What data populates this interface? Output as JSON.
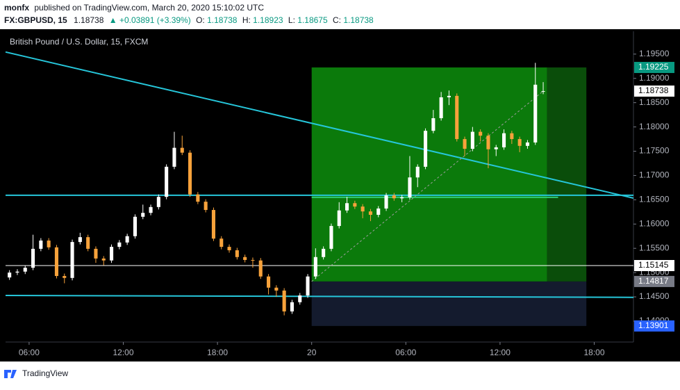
{
  "header": {
    "user": "monfx",
    "published": "published on TradingView.com, March 20, 2020 15:10:02 UTC",
    "symbol": "FX:GBPUSD, 15",
    "last": "1.18738",
    "change": "▲ +0.03891 (+3.39%)",
    "o_label": "O:",
    "o": "1.18738",
    "h_label": "H:",
    "h": "1.18923",
    "l_label": "L:",
    "l": "1.18675",
    "c_label": "C:",
    "c": "1.18738"
  },
  "footer": {
    "brand": "TradingView"
  },
  "chart_data": {
    "type": "candlestick",
    "title": "British Pound / U.S. Dollar, 15, FXCM",
    "up_color": "#ffffff",
    "down_color": "#f7a23b",
    "x": [
      4.75,
      5.25,
      5.75,
      6.25,
      6.75,
      7.25,
      7.75,
      8.25,
      8.75,
      9.25,
      9.75,
      10.25,
      10.75,
      11.25,
      11.75,
      12.25,
      12.75,
      13.25,
      13.75,
      14.25,
      14.75,
      15.25,
      15.75,
      16.25,
      16.75,
      17.25,
      17.75,
      18.25,
      18.75,
      19.25,
      19.75,
      20.25,
      20.75,
      21.25,
      21.75,
      22.25,
      22.75,
      23.25,
      23.75,
      24.25,
      24.75,
      25.25,
      25.75,
      26.25,
      26.75,
      27.25,
      27.75,
      28.25,
      28.75,
      29.25,
      29.75,
      30.25,
      30.75,
      31.25,
      31.75,
      32.25,
      32.75,
      33.25,
      33.75,
      34.25,
      34.75,
      35.25,
      35.75,
      36.25,
      36.75,
      37.25,
      37.75,
      38.25,
      38.75
    ],
    "open": [
      1.149,
      1.15,
      1.1502,
      1.151,
      1.1549,
      1.1566,
      1.1552,
      1.1493,
      1.1489,
      1.1563,
      1.1573,
      1.1549,
      1.1529,
      1.1525,
      1.1553,
      1.1562,
      1.1575,
      1.1615,
      1.1623,
      1.1635,
      1.1656,
      1.1718,
      1.1757,
      1.1747,
      1.1661,
      1.1646,
      1.1629,
      1.157,
      1.1553,
      1.1546,
      1.1532,
      1.1526,
      1.1525,
      1.1492,
      1.1469,
      1.1463,
      1.142,
      1.1439,
      1.1453,
      1.1492,
      1.1532,
      1.1549,
      1.1596,
      1.1628,
      1.1643,
      1.1636,
      1.1626,
      1.1619,
      1.1632,
      1.1659,
      1.1653,
      1.1655,
      1.1696,
      1.1718,
      1.1792,
      1.1818,
      1.1861,
      1.1864,
      1.1775,
      1.1755,
      1.179,
      1.1782,
      1.1754,
      1.1758,
      1.1787,
      1.1775,
      1.1761,
      1.1768,
      1.18738
    ],
    "high": [
      1.1505,
      1.1507,
      1.1515,
      1.1578,
      1.1571,
      1.1571,
      1.1557,
      1.1498,
      1.1568,
      1.1582,
      1.1578,
      1.1554,
      1.1534,
      1.1558,
      1.1567,
      1.158,
      1.162,
      1.164,
      1.164,
      1.1661,
      1.1723,
      1.179,
      1.1782,
      1.1752,
      1.1666,
      1.1651,
      1.1634,
      1.1575,
      1.1558,
      1.1551,
      1.1537,
      1.1531,
      1.153,
      1.1497,
      1.1474,
      1.1468,
      1.1444,
      1.1458,
      1.1497,
      1.155,
      1.1554,
      1.1601,
      1.1645,
      1.1656,
      1.1648,
      1.1641,
      1.1631,
      1.1637,
      1.1664,
      1.1664,
      1.166,
      1.174,
      1.1723,
      1.1797,
      1.1835,
      1.1872,
      1.1875,
      1.1869,
      1.178,
      1.18,
      1.1795,
      1.1787,
      1.1763,
      1.1795,
      1.1792,
      1.178,
      1.1773,
      1.1932,
      1.18923
    ],
    "low": [
      1.1485,
      1.1495,
      1.1497,
      1.1505,
      1.1544,
      1.1547,
      1.1488,
      1.1478,
      1.1484,
      1.1558,
      1.1544,
      1.152,
      1.1515,
      1.152,
      1.1548,
      1.1557,
      1.157,
      1.161,
      1.1618,
      1.163,
      1.1651,
      1.1713,
      1.1742,
      1.1656,
      1.1641,
      1.1624,
      1.1565,
      1.1548,
      1.1541,
      1.1527,
      1.1521,
      1.151,
      1.1487,
      1.1455,
      1.145,
      1.1412,
      1.1415,
      1.1434,
      1.1448,
      1.1487,
      1.1527,
      1.1544,
      1.1591,
      1.1623,
      1.1631,
      1.1612,
      1.1606,
      1.1614,
      1.1627,
      1.1648,
      1.1645,
      1.165,
      1.1676,
      1.1713,
      1.1787,
      1.1813,
      1.1845,
      1.177,
      1.174,
      1.175,
      1.177,
      1.1715,
      1.174,
      1.1753,
      1.1765,
      1.1748,
      1.1755,
      1.1763,
      1.18675
    ],
    "close": [
      1.15,
      1.1502,
      1.151,
      1.1549,
      1.1566,
      1.1552,
      1.1493,
      1.1489,
      1.1563,
      1.1573,
      1.1549,
      1.1529,
      1.1525,
      1.1553,
      1.1562,
      1.1575,
      1.1615,
      1.1623,
      1.1635,
      1.1656,
      1.1718,
      1.1757,
      1.1747,
      1.1661,
      1.1646,
      1.1629,
      1.157,
      1.1553,
      1.1546,
      1.1532,
      1.1526,
      1.1525,
      1.1492,
      1.1469,
      1.1463,
      1.142,
      1.1439,
      1.1453,
      1.1492,
      1.1532,
      1.1549,
      1.1596,
      1.1628,
      1.1643,
      1.1636,
      1.1626,
      1.1619,
      1.1632,
      1.1659,
      1.1653,
      1.1655,
      1.1696,
      1.1718,
      1.1792,
      1.1818,
      1.1861,
      1.1864,
      1.1775,
      1.1755,
      1.179,
      1.1782,
      1.1754,
      1.1758,
      1.1787,
      1.1775,
      1.1761,
      1.1768,
      1.1887,
      1.18738
    ],
    "xlim": [
      4.5,
      44.5
    ],
    "xticks": [
      {
        "value": 6,
        "label": "06:00"
      },
      {
        "value": 12,
        "label": "12:00"
      },
      {
        "value": 18,
        "label": "18:00"
      },
      {
        "value": 24,
        "label": "20"
      },
      {
        "value": 30,
        "label": "06:00"
      },
      {
        "value": 36,
        "label": "12:00"
      },
      {
        "value": 42,
        "label": "18:00"
      }
    ],
    "ylim": [
      1.1357,
      1.1997
    ],
    "yticks": [
      {
        "value": 1.14,
        "label": "1.14000"
      },
      {
        "value": 1.145,
        "label": "1.14500"
      },
      {
        "value": 1.15,
        "label": "1.15000"
      },
      {
        "value": 1.155,
        "label": "1.15500"
      },
      {
        "value": 1.16,
        "label": "1.16000"
      },
      {
        "value": 1.165,
        "label": "1.16500"
      },
      {
        "value": 1.17,
        "label": "1.17000"
      },
      {
        "value": 1.175,
        "label": "1.17500"
      },
      {
        "value": 1.18,
        "label": "1.18000"
      },
      {
        "value": 1.185,
        "label": "1.18500"
      },
      {
        "value": 1.19,
        "label": "1.19000"
      },
      {
        "value": 1.195,
        "label": "1.19500"
      }
    ],
    "position": {
      "x": [
        24,
        39,
        41.5
      ],
      "target": 1.19225,
      "entry": 1.14817,
      "stop": 1.13901,
      "mid_level": 1.1655,
      "mid_end": 39.7
    },
    "lines": [
      {
        "color": "#26c6da",
        "x": [
          4.5,
          44.5
        ],
        "y": [
          1.19543,
          1.16534
        ]
      },
      {
        "color": "#26c6da",
        "x": [
          4.5,
          44.5
        ],
        "y": [
          1.16592,
          1.16592
        ]
      },
      {
        "color": "#26c6da",
        "x": [
          4.5,
          44.5
        ],
        "y": [
          1.1453,
          1.1449
        ]
      },
      {
        "color": "#ffffff",
        "x": [
          4.5,
          44.5
        ],
        "y": [
          1.15145,
          1.15145
        ]
      }
    ],
    "price_labels": [
      {
        "value": 1.19225,
        "label": "1.19225",
        "color": "#089981",
        "text_color": "#ffffff"
      },
      {
        "value": 1.18738,
        "label": "1.18738",
        "color": "#ffffff",
        "text_color": "#000000"
      },
      {
        "value": 1.15145,
        "label": "1.15145",
        "color": "#ffffff",
        "text_color": "#000000"
      },
      {
        "value": 1.14817,
        "label": "1.14817",
        "color": "#787b86",
        "text_color": "#ffffff"
      },
      {
        "value": 1.13901,
        "label": "1.13901",
        "color": "#2962ff",
        "text_color": "#ffffff"
      }
    ]
  }
}
